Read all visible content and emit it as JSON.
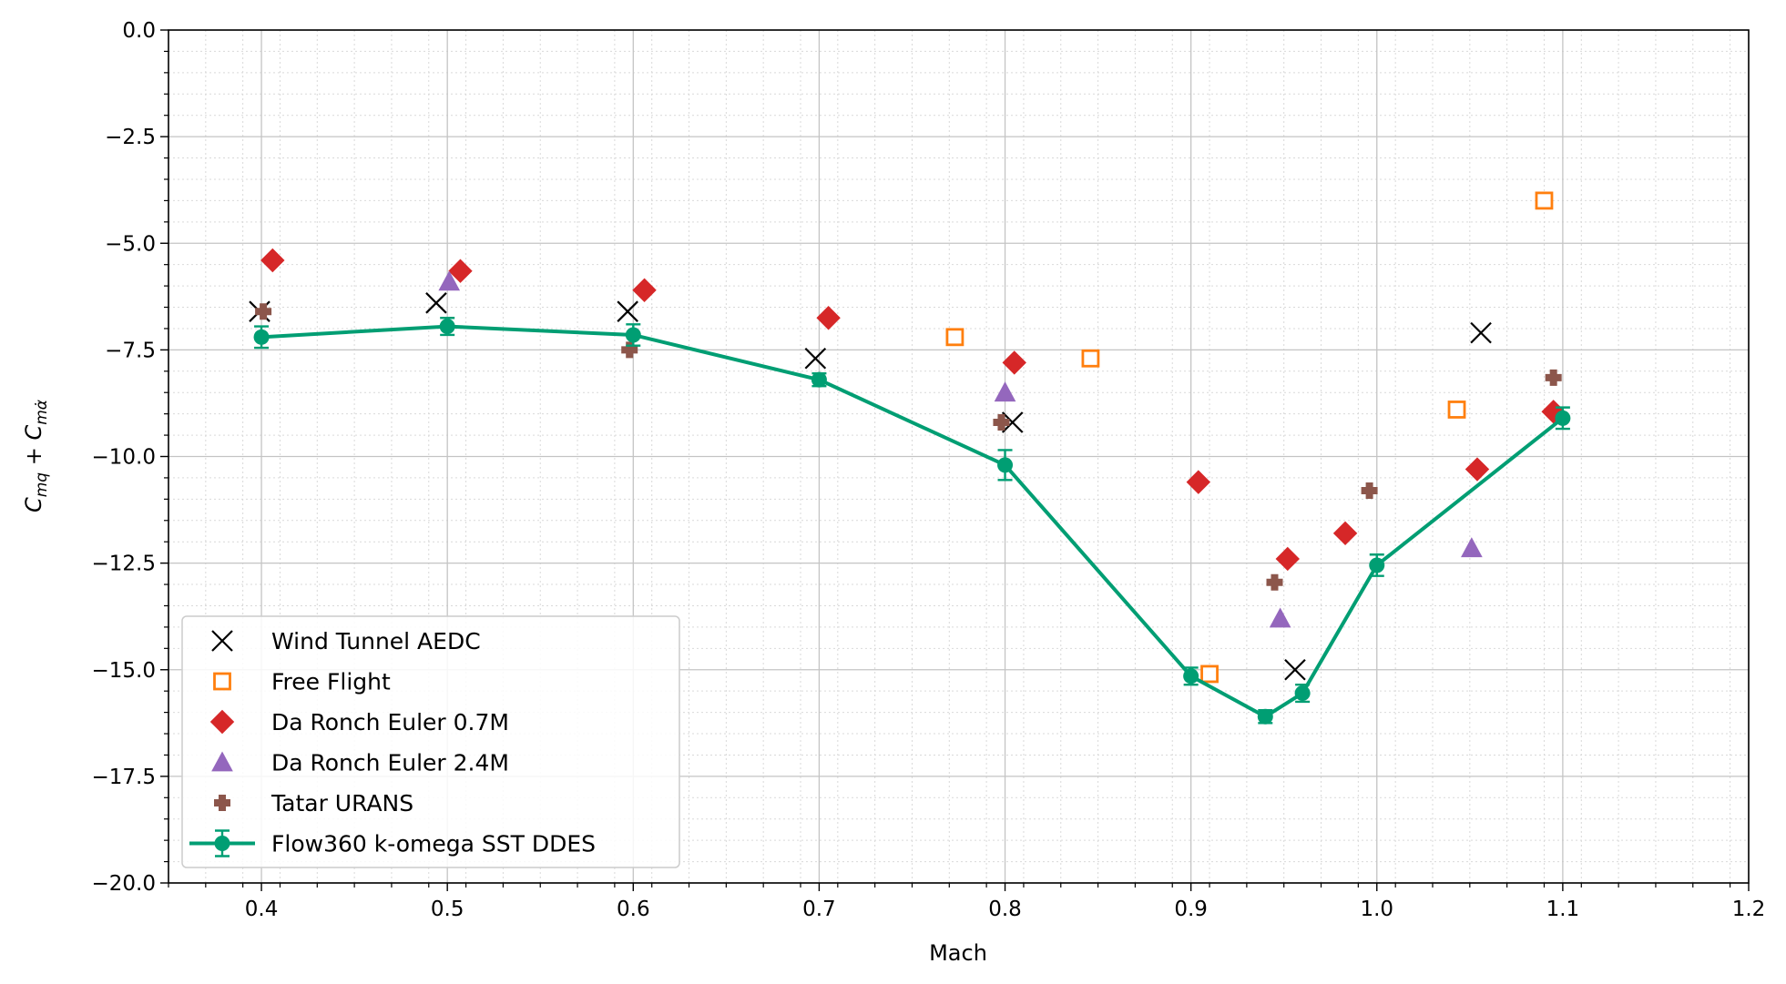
{
  "chart_data": {
    "type": "scatter",
    "title": "",
    "xlabel": "Mach",
    "ylabel": "C_{mq} + C_{mα̇}",
    "xlim": [
      0.35,
      1.2
    ],
    "ylim": [
      -20.0,
      0.0
    ],
    "xticks": [
      "0.4",
      "0.5",
      "0.6",
      "0.7",
      "0.8",
      "0.9",
      "1.0",
      "1.1",
      "1.2"
    ],
    "yticks": [
      "0.0",
      "−2.5",
      "−5.0",
      "−7.5",
      "−10.0",
      "−12.5",
      "−15.0",
      "−17.5",
      "−20.0"
    ],
    "grid": "major solid, minor dotted",
    "legend_position": "lower-left",
    "series": [
      {
        "name": "Wind Tunnel AEDC",
        "marker": "x",
        "color": "#000000",
        "x": [
          0.399,
          0.494,
          0.597,
          0.698,
          0.804,
          0.956,
          1.056
        ],
        "y": [
          -6.6,
          -6.4,
          -6.6,
          -7.7,
          -9.2,
          -15.0,
          -7.1
        ]
      },
      {
        "name": "Free Flight",
        "marker": "square-open",
        "color": "#ff7f0e",
        "x": [
          0.773,
          0.846,
          0.91,
          1.043,
          1.09
        ],
        "y": [
          -7.2,
          -7.7,
          -15.1,
          -8.9,
          -4.0
        ]
      },
      {
        "name": "Da Ronch Euler 0.7M",
        "marker": "diamond",
        "color": "#d62728",
        "x": [
          0.406,
          0.507,
          0.606,
          0.705,
          0.805,
          0.904,
          0.952,
          0.983,
          1.054,
          1.095
        ],
        "y": [
          -5.4,
          -5.65,
          -6.1,
          -6.75,
          -7.8,
          -10.6,
          -12.4,
          -11.8,
          -10.3,
          -8.95
        ]
      },
      {
        "name": "Da Ronch Euler 2.4M",
        "marker": "triangle",
        "color": "#9467bd",
        "x": [
          0.501,
          0.8,
          0.948,
          1.051
        ],
        "y": [
          -5.9,
          -8.5,
          -13.8,
          -12.15
        ]
      },
      {
        "name": "Tatar URANS",
        "marker": "plus-bold",
        "color": "#8c564b",
        "x": [
          0.401,
          0.598,
          0.798,
          0.945,
          0.996,
          1.095
        ],
        "y": [
          -6.6,
          -7.5,
          -9.2,
          -12.95,
          -10.8,
          -8.15
        ]
      },
      {
        "name": "Flow360 k-omega SST DDES",
        "marker": "circle-line-errorbar",
        "color": "#009e73",
        "x": [
          0.4,
          0.5,
          0.6,
          0.7,
          0.8,
          0.9,
          0.94,
          0.96,
          1.0,
          1.1
        ],
        "y": [
          -7.2,
          -6.95,
          -7.15,
          -8.2,
          -10.2,
          -15.15,
          -16.1,
          -15.55,
          -12.55,
          -9.1
        ],
        "err": [
          0.25,
          0.2,
          0.25,
          0.15,
          0.35,
          0.2,
          0.15,
          0.2,
          0.25,
          0.25
        ]
      }
    ]
  }
}
